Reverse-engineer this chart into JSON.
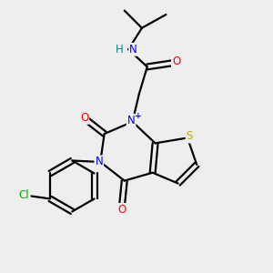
{
  "bg_color": "#eeeeee",
  "atom_colors": {
    "C": "#000000",
    "N": "#0000ff",
    "O": "#ff0000",
    "S": "#bbaa00",
    "Cl": "#00aa00",
    "H": "#008888"
  },
  "lw": 1.6,
  "fs": 8.5
}
